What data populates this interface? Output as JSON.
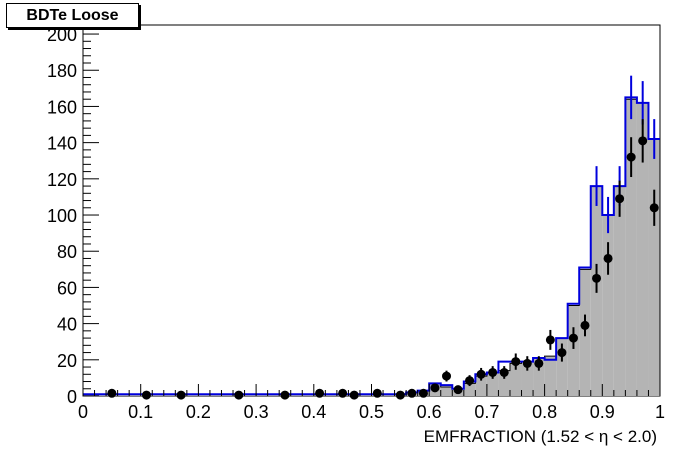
{
  "chart_data": {
    "type": "histogram",
    "title": "BDTe Loose",
    "xlabel": "EMFRACTION (1.52 <  η < 2.0)",
    "ylabel": "",
    "xlim": [
      0,
      1
    ],
    "ylim": [
      0,
      205
    ],
    "x_ticks": [
      "0",
      "0.1",
      "0.2",
      "0.3",
      "0.4",
      "0.5",
      "0.6",
      "0.7",
      "0.8",
      "0.9",
      "1"
    ],
    "y_ticks": [
      "0",
      "20",
      "40",
      "60",
      "80",
      "100",
      "120",
      "140",
      "160",
      "180",
      "200"
    ],
    "grid": false,
    "series": [
      {
        "kind": "filled-histogram",
        "color": "#b4b4b4",
        "bins": [
          [
            0.0,
            0.02,
            1
          ],
          [
            0.02,
            0.04,
            1
          ],
          [
            0.04,
            0.06,
            1
          ],
          [
            0.06,
            0.08,
            1
          ],
          [
            0.08,
            0.1,
            1
          ],
          [
            0.1,
            0.12,
            1
          ],
          [
            0.12,
            0.14,
            1
          ],
          [
            0.14,
            0.16,
            1
          ],
          [
            0.16,
            0.18,
            1
          ],
          [
            0.18,
            0.2,
            1
          ],
          [
            0.2,
            0.22,
            1
          ],
          [
            0.22,
            0.24,
            1
          ],
          [
            0.24,
            0.26,
            1
          ],
          [
            0.26,
            0.28,
            1
          ],
          [
            0.28,
            0.3,
            1
          ],
          [
            0.3,
            0.32,
            1
          ],
          [
            0.32,
            0.34,
            1
          ],
          [
            0.34,
            0.36,
            1
          ],
          [
            0.36,
            0.38,
            1
          ],
          [
            0.38,
            0.4,
            1
          ],
          [
            0.4,
            0.42,
            1
          ],
          [
            0.42,
            0.44,
            1
          ],
          [
            0.44,
            0.46,
            1
          ],
          [
            0.46,
            0.48,
            1
          ],
          [
            0.48,
            0.5,
            1
          ],
          [
            0.5,
            0.52,
            1
          ],
          [
            0.52,
            0.54,
            1
          ],
          [
            0.54,
            0.56,
            1
          ],
          [
            0.56,
            0.58,
            2
          ],
          [
            0.58,
            0.6,
            3
          ],
          [
            0.6,
            0.62,
            7
          ],
          [
            0.62,
            0.64,
            5
          ],
          [
            0.64,
            0.66,
            4
          ],
          [
            0.66,
            0.68,
            7
          ],
          [
            0.68,
            0.7,
            11
          ],
          [
            0.7,
            0.72,
            13
          ],
          [
            0.72,
            0.74,
            14
          ],
          [
            0.74,
            0.76,
            18
          ],
          [
            0.76,
            0.78,
            19
          ],
          [
            0.78,
            0.8,
            21
          ],
          [
            0.8,
            0.82,
            22
          ],
          [
            0.82,
            0.84,
            32
          ],
          [
            0.84,
            0.86,
            50
          ],
          [
            0.86,
            0.88,
            70
          ],
          [
            0.88,
            0.9,
            116
          ],
          [
            0.9,
            0.92,
            100
          ],
          [
            0.92,
            0.94,
            116
          ],
          [
            0.94,
            0.96,
            164
          ],
          [
            0.96,
            0.98,
            162
          ],
          [
            0.98,
            1.0,
            142
          ]
        ]
      },
      {
        "kind": "step-line",
        "color": "#0000dd",
        "bins": [
          [
            0.0,
            0.04,
            1
          ],
          [
            0.04,
            0.1,
            1
          ],
          [
            0.1,
            0.2,
            1
          ],
          [
            0.2,
            0.3,
            1
          ],
          [
            0.3,
            0.4,
            1
          ],
          [
            0.4,
            0.5,
            1
          ],
          [
            0.5,
            0.56,
            1
          ],
          [
            0.56,
            0.58,
            2
          ],
          [
            0.58,
            0.6,
            3
          ],
          [
            0.6,
            0.62,
            7
          ],
          [
            0.62,
            0.64,
            6
          ],
          [
            0.64,
            0.66,
            4
          ],
          [
            0.66,
            0.68,
            8
          ],
          [
            0.68,
            0.7,
            12
          ],
          [
            0.7,
            0.72,
            13
          ],
          [
            0.72,
            0.74,
            19
          ],
          [
            0.74,
            0.76,
            19
          ],
          [
            0.76,
            0.78,
            19
          ],
          [
            0.78,
            0.8,
            21
          ],
          [
            0.8,
            0.82,
            20
          ],
          [
            0.82,
            0.84,
            32
          ],
          [
            0.84,
            0.86,
            51
          ],
          [
            0.86,
            0.88,
            71
          ],
          [
            0.88,
            0.9,
            116
          ],
          [
            0.9,
            0.92,
            100
          ],
          [
            0.92,
            0.94,
            116
          ],
          [
            0.94,
            0.96,
            165
          ],
          [
            0.96,
            0.98,
            162
          ],
          [
            0.98,
            1.0,
            142
          ]
        ],
        "errors": [
          [
            0.89,
            116,
            11
          ],
          [
            0.91,
            100,
            10
          ],
          [
            0.93,
            116,
            11
          ],
          [
            0.95,
            165,
            12
          ],
          [
            0.97,
            162,
            12
          ],
          [
            0.99,
            142,
            11
          ]
        ]
      },
      {
        "kind": "points",
        "color": "#000000",
        "points": [
          [
            0.05,
            1.5,
            0
          ],
          [
            0.11,
            0.5,
            0
          ],
          [
            0.17,
            0.5,
            0
          ],
          [
            0.27,
            0.5,
            0
          ],
          [
            0.35,
            0.5,
            0
          ],
          [
            0.41,
            1.5,
            0
          ],
          [
            0.45,
            1.5,
            0
          ],
          [
            0.47,
            0.5,
            0
          ],
          [
            0.51,
            1.5,
            0
          ],
          [
            0.55,
            0.5,
            0
          ],
          [
            0.57,
            1.5,
            0
          ],
          [
            0.59,
            1.5,
            0
          ],
          [
            0.61,
            4.5,
            2
          ],
          [
            0.63,
            11,
            3
          ],
          [
            0.65,
            3.5,
            2
          ],
          [
            0.67,
            8.5,
            3
          ],
          [
            0.69,
            12,
            3.5
          ],
          [
            0.71,
            13,
            3.5
          ],
          [
            0.73,
            13,
            3.5
          ],
          [
            0.75,
            19,
            4.5
          ],
          [
            0.77,
            18,
            4
          ],
          [
            0.79,
            18,
            4
          ],
          [
            0.81,
            31,
            5.5
          ],
          [
            0.83,
            24,
            5
          ],
          [
            0.85,
            32,
            6
          ],
          [
            0.87,
            39,
            6
          ],
          [
            0.89,
            65,
            8
          ],
          [
            0.91,
            76,
            9
          ],
          [
            0.93,
            109,
            10
          ],
          [
            0.95,
            132,
            11
          ],
          [
            0.97,
            141,
            12
          ],
          [
            0.99,
            104,
            10
          ]
        ]
      }
    ]
  }
}
